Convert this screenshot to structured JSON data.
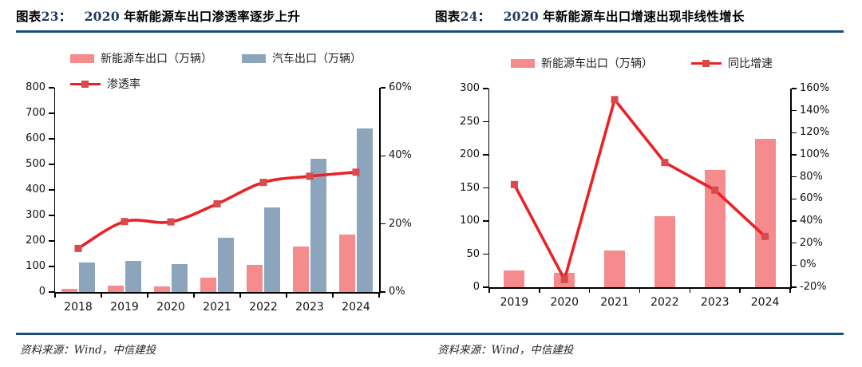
{
  "colors": {
    "accent_rule": "#1A4F7B",
    "title_number": "#1F3864",
    "pink_bar": "#F58B8D",
    "blue_bar": "#8CA5BD",
    "red_line": "#EA2125",
    "red_marker": "#D84A4C",
    "axis": "#000000"
  },
  "panels": [
    {
      "fig_word": "图表",
      "fig_num": "23",
      "colon": "：",
      "year": "2020",
      "title_rest": "年新能源车出口渗透率逐步上升",
      "source": "资料来源：Wind，中信建投"
    },
    {
      "fig_word": "图表",
      "fig_num": "24",
      "colon": "：",
      "year": "2020",
      "title_rest": "年新能源车出口增速出现非线性增长",
      "source": "资料来源：Wind，中信建投"
    }
  ],
  "chart_data": [
    {
      "type": "bar+line",
      "title": "2020年新能源车出口渗透率逐步上升",
      "categories": [
        "2018",
        "2019",
        "2020",
        "2021",
        "2022",
        "2023",
        "2024"
      ],
      "series": [
        {
          "name": "新能源车出口（万辆）",
          "type": "bar",
          "axis": "left",
          "color": "#F58B8D",
          "values": [
            14,
            25,
            22,
            55,
            107,
            177,
            224
          ]
        },
        {
          "name": "汽车出口（万辆）",
          "type": "bar",
          "axis": "left",
          "color": "#8CA5BD",
          "values": [
            115,
            123,
            108,
            214,
            332,
            522,
            641
          ]
        },
        {
          "name": "渗透率",
          "type": "line",
          "axis": "right",
          "color": "#EA2125",
          "unit": "%",
          "values": [
            12.8,
            20.7,
            20.6,
            25.9,
            32.2,
            34.0,
            35.2
          ]
        }
      ],
      "left_axis": {
        "min": 0,
        "max": 800,
        "step": 100
      },
      "right_axis": {
        "min": 0,
        "max": 60,
        "step": 20,
        "suffix": "%"
      },
      "legend_position": "top",
      "grid": false
    },
    {
      "type": "bar+line",
      "title": "2020年新能源车出口增速出现非线性增长",
      "categories": [
        "2019",
        "2020",
        "2021",
        "2022",
        "2023",
        "2024"
      ],
      "series": [
        {
          "name": "新能源车出口（万辆）",
          "type": "bar",
          "axis": "left",
          "color": "#F58B8D",
          "values": [
            25,
            22,
            55,
            107,
            177,
            224
          ]
        },
        {
          "name": "同比增速",
          "type": "line",
          "axis": "right",
          "color": "#EA2125",
          "unit": "%",
          "values": [
            73,
            -13,
            150,
            93,
            68,
            26
          ]
        }
      ],
      "left_axis": {
        "min": 0,
        "max": 300,
        "step": 50
      },
      "right_axis": {
        "min": -20,
        "max": 160,
        "step": 20,
        "suffix": "%"
      },
      "legend_position": "top",
      "grid": false
    }
  ]
}
